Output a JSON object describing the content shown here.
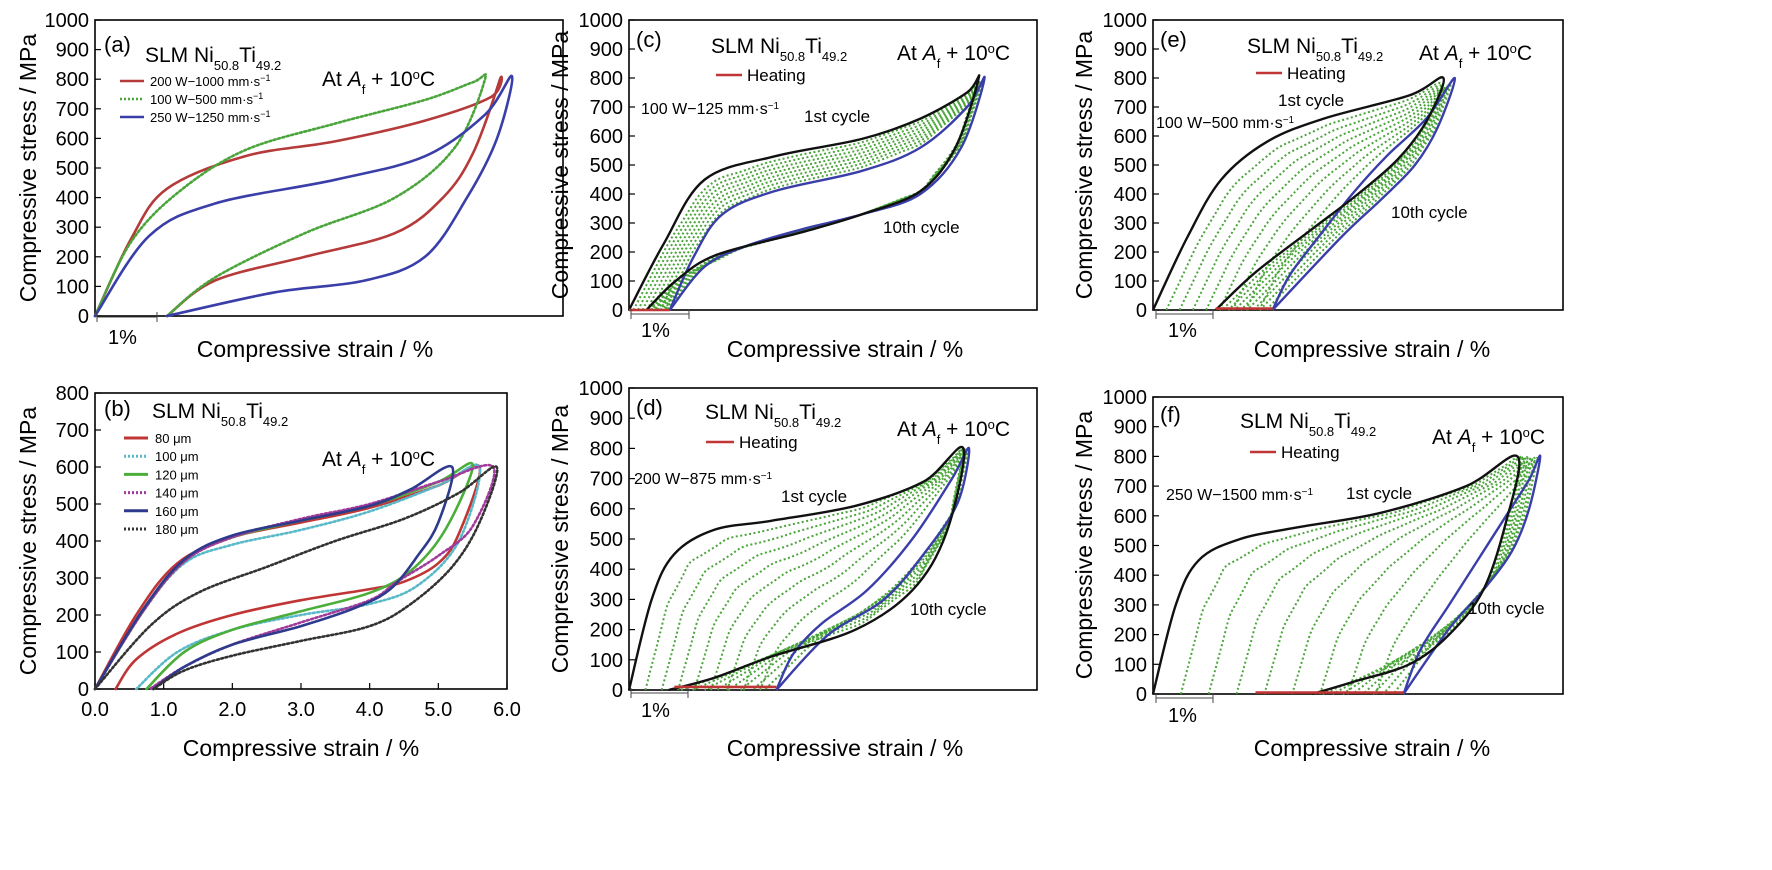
{
  "figure": {
    "type": "composite",
    "panels_count": 6
  },
  "chart_data": [
    {
      "panel": "(a)",
      "type": "line",
      "title_main": "SLM Ni",
      "title_sub1": "50.8",
      "title_mid": "Ti",
      "title_sub2": "49.2",
      "condition_prefix": "At ",
      "condition_A": "A",
      "condition_f": "f",
      "condition_rest": " + 10",
      "condition_o": "o",
      "condition_C": "C",
      "ylabel": "Compressive stress / MPa",
      "xlabel": "Compressive strain / %",
      "ylim": [
        0,
        1000
      ],
      "yticks": [
        "0",
        "100",
        "200",
        "300",
        "400",
        "500",
        "600",
        "700",
        "800",
        "900",
        "1000"
      ],
      "scale_bar_label": "1%",
      "series": [
        {
          "name": "200 W−1000 mm·s",
          "name_sup": "−1",
          "color": "#b53a3a",
          "style": "solid",
          "x": [
            0,
            0.6,
            1.2,
            2.5,
            4.0,
            5.5,
            6.6,
            6.75,
            6.3,
            5.8,
            5.0,
            3.5,
            2.0,
            1.2
          ],
          "y": [
            0,
            260,
            430,
            540,
            590,
            660,
            740,
            800,
            550,
            400,
            280,
            200,
            120,
            0
          ]
        },
        {
          "name": "100 W−500 mm·s",
          "name_sup": "−1",
          "color": "#4aa53a",
          "style": "dotted",
          "x": [
            0,
            0.6,
            1.4,
            2.5,
            4.0,
            5.5,
            6.3,
            6.5,
            6.0,
            5.0,
            3.5,
            2.0,
            1.2
          ],
          "y": [
            0,
            250,
            420,
            560,
            650,
            730,
            790,
            800,
            570,
            400,
            280,
            130,
            0
          ]
        },
        {
          "name": "250 W−1250 mm·s",
          "name_sup": "−1",
          "color": "#3a3ea8",
          "style": "solid",
          "x": [
            0,
            0.9,
            2.0,
            4.0,
            5.5,
            6.5,
            6.95,
            6.7,
            6.2,
            5.5,
            4.5,
            3.0,
            1.2
          ],
          "y": [
            0,
            270,
            380,
            460,
            540,
            680,
            810,
            600,
            400,
            200,
            120,
            80,
            0
          ]
        }
      ]
    },
    {
      "panel": "(b)",
      "type": "line",
      "title_main": "SLM Ni",
      "title_sub1": "50.8",
      "title_mid": "Ti",
      "title_sub2": "49.2",
      "condition_prefix": "At ",
      "condition_A": "A",
      "condition_f": "f",
      "condition_rest": " + 10",
      "condition_o": "o",
      "condition_C": "C",
      "ylabel": "Compressive stress / MPa",
      "xlabel": "Compressive strain / %",
      "ylim": [
        0,
        800
      ],
      "xlim": [
        0,
        6.0
      ],
      "yticks": [
        "0",
        "100",
        "200",
        "300",
        "400",
        "500",
        "600",
        "700",
        "800"
      ],
      "xticks": [
        "0.0",
        "1.0",
        "2.0",
        "3.0",
        "4.0",
        "5.0",
        "6.0"
      ],
      "series": [
        {
          "name": "80 μm",
          "color": "#c03535",
          "style": "solid",
          "x": [
            0,
            0.6,
            1.2,
            2.0,
            3.0,
            4.0,
            5.0,
            5.6,
            5.3,
            5.0,
            4.5,
            4.0,
            3.0,
            2.0,
            1.2,
            0.6,
            0.3
          ],
          "y": [
            0,
            200,
            340,
            410,
            450,
            490,
            550,
            600,
            420,
            340,
            290,
            270,
            240,
            200,
            150,
            80,
            0
          ]
        },
        {
          "name": "100 μm",
          "color": "#5ab9c8",
          "style": "dotted",
          "x": [
            0,
            0.7,
            1.3,
            2.0,
            3.0,
            4.0,
            5.0,
            5.6,
            5.3,
            4.7,
            4.0,
            3.0,
            2.0,
            1.2,
            0.6
          ],
          "y": [
            0,
            210,
            340,
            390,
            430,
            480,
            550,
            600,
            400,
            280,
            230,
            200,
            160,
            100,
            0
          ]
        },
        {
          "name": "120 μm",
          "color": "#4cae3a",
          "style": "solid",
          "x": [
            0,
            0.7,
            1.3,
            2.0,
            3.0,
            4.0,
            5.0,
            5.5,
            5.1,
            4.6,
            4.0,
            3.0,
            2.0,
            1.3,
            0.75
          ],
          "y": [
            0,
            210,
            345,
            410,
            455,
            495,
            560,
            605,
            430,
            320,
            260,
            210,
            160,
            100,
            0
          ]
        },
        {
          "name": "140 μm",
          "color": "#a23a9c",
          "style": "dotted",
          "x": [
            0,
            0.7,
            1.3,
            2.0,
            3.0,
            4.0,
            5.0,
            5.8,
            5.5,
            5.0,
            4.4,
            4.0,
            3.0,
            2.0,
            1.3,
            0.8
          ],
          "y": [
            0,
            210,
            345,
            410,
            460,
            500,
            560,
            600,
            440,
            360,
            290,
            240,
            180,
            120,
            60,
            0
          ]
        },
        {
          "name": "160 μm",
          "color": "#2e3a8c",
          "style": "solid",
          "x": [
            0,
            0.7,
            1.3,
            2.0,
            3.0,
            4.0,
            4.6,
            5.2,
            5.0,
            4.7,
            4.3,
            3.8,
            3.0,
            2.0,
            1.3,
            0.85
          ],
          "y": [
            0,
            215,
            350,
            415,
            455,
            495,
            540,
            600,
            450,
            360,
            270,
            220,
            170,
            120,
            60,
            0
          ]
        },
        {
          "name": "180 μm",
          "color": "#333333",
          "style": "dotted",
          "x": [
            0,
            0.8,
            1.5,
            2.5,
            3.5,
            4.5,
            5.3,
            5.85,
            5.6,
            5.2,
            4.6,
            4.0,
            3.0,
            2.0,
            1.3,
            0.85
          ],
          "y": [
            0,
            170,
            260,
            330,
            400,
            460,
            530,
            600,
            450,
            330,
            230,
            170,
            130,
            90,
            50,
            0
          ]
        }
      ]
    },
    {
      "panel": "(c)",
      "type": "line",
      "title_main": "SLM Ni",
      "title_sub1": "50.8",
      "title_mid": "Ti",
      "title_sub2": "49.2",
      "condition_prefix": "At ",
      "condition_A": "A",
      "condition_f": "f",
      "condition_rest": " + 10",
      "condition_o": "o",
      "condition_C": "C",
      "legend_heating": "Heating",
      "process": "100 W−125 mm·s",
      "process_sup": "−1",
      "label_first": "1st cycle",
      "label_tenth": "10th cycle",
      "ylabel": "Compressive stress / MPa",
      "xlabel": "Compressive strain  / %",
      "ylim": [
        0,
        1000
      ],
      "yticks": [
        "0",
        "100",
        "200",
        "300",
        "400",
        "500",
        "600",
        "700",
        "800",
        "900",
        "1000"
      ],
      "scale_bar_label": "1%",
      "cycle_first": {
        "x": [
          0,
          0.6,
          1.3,
          2.5,
          4.0,
          5.0,
          5.8,
          6.0,
          5.6,
          5.0,
          4.0,
          3.0,
          1.5,
          0.8,
          0.3
        ],
        "y": [
          0,
          230,
          450,
          530,
          590,
          660,
          750,
          800,
          560,
          410,
          330,
          270,
          190,
          100,
          0
        ]
      },
      "cycle_last": {
        "x": [
          0.7,
          1.1,
          1.6,
          2.5,
          4.0,
          5.0,
          5.8,
          6.1,
          5.7,
          5.0,
          4.0,
          3.0,
          2.0,
          1.3,
          0.7
        ],
        "y": [
          0,
          180,
          330,
          410,
          480,
          560,
          700,
          800,
          560,
          400,
          330,
          280,
          220,
          150,
          0
        ]
      },
      "heating_segment": {
        "x": [
          0,
          0.7
        ],
        "y": [
          0,
          0
        ]
      },
      "middle_cycles": 8
    },
    {
      "panel": "(d)",
      "type": "line",
      "title_main": "SLM Ni",
      "title_sub1": "50.8",
      "title_mid": "Ti",
      "title_sub2": "49.2",
      "condition_prefix": "At ",
      "condition_A": "A",
      "condition_f": "f",
      "condition_rest": " + 10",
      "condition_o": "o",
      "condition_C": "C",
      "legend_heating": "Heating",
      "process": "200 W−875 mm·s",
      "process_sup": "−1",
      "label_first": "1st cycle",
      "label_tenth": "10th cycle",
      "ylabel": "Compressive stress / MPa",
      "xlabel": "Compressive strain  / %",
      "ylim": [
        0,
        1000
      ],
      "yticks": [
        "0",
        "100",
        "200",
        "300",
        "400",
        "500",
        "600",
        "700",
        "800",
        "900",
        "1000"
      ],
      "scale_bar_label": "1%",
      "cycle_first": {
        "x": [
          0,
          0.4,
          0.8,
          1.5,
          2.5,
          4.0,
          5.2,
          5.9,
          5.6,
          5.0,
          4.0,
          2.5,
          1.5,
          0.7
        ],
        "y": [
          0,
          300,
          450,
          530,
          560,
          610,
          690,
          800,
          520,
          330,
          200,
          110,
          40,
          0
        ]
      },
      "cycle_last": {
        "x": [
          2.6,
          2.9,
          3.4,
          4.2,
          5.0,
          5.7,
          6.0,
          5.8,
          5.2,
          4.5,
          3.5,
          2.6
        ],
        "y": [
          0,
          120,
          220,
          330,
          500,
          700,
          800,
          620,
          450,
          300,
          180,
          0
        ]
      },
      "heating_segment": {
        "x": [
          0.8,
          2.6
        ],
        "y": [
          10,
          10
        ]
      },
      "middle_cycles": 8
    },
    {
      "panel": "(e)",
      "type": "line",
      "title_main": "SLM Ni",
      "title_sub1": "50.8",
      "title_mid": "Ti",
      "title_sub2": "49.2",
      "condition_prefix": "At ",
      "condition_A": "A",
      "condition_f": "f",
      "condition_rest": " + 10",
      "condition_o": "o",
      "condition_C": "C",
      "legend_heating": "Heating",
      "process": "100 W−500 mm·s",
      "process_sup": "−1",
      "label_first": "1st cycle",
      "label_tenth": "10th cycle",
      "ylabel": "Compressive stress / MPa",
      "xlabel": "Compressive strain  / %",
      "ylim": [
        0,
        1000
      ],
      "yticks": [
        "0",
        "100",
        "200",
        "300",
        "400",
        "500",
        "600",
        "700",
        "800",
        "900",
        "1000"
      ],
      "scale_bar_label": "1%",
      "cycle_first": {
        "x": [
          0,
          0.6,
          1.2,
          2.0,
          3.0,
          4.5,
          5.1,
          4.8,
          4.3,
          3.6,
          2.8,
          1.8,
          1.1
        ],
        "y": [
          0,
          250,
          450,
          580,
          660,
          740,
          800,
          650,
          520,
          400,
          280,
          130,
          0
        ]
      },
      "cycle_last": {
        "x": [
          2.1,
          2.4,
          2.9,
          3.5,
          4.1,
          4.8,
          5.3,
          5.0,
          4.6,
          4.0,
          3.3,
          2.1
        ],
        "y": [
          0,
          120,
          250,
          400,
          530,
          660,
          800,
          630,
          500,
          380,
          250,
          0
        ]
      },
      "heating_segment": {
        "x": [
          1.1,
          2.1
        ],
        "y": [
          5,
          5
        ]
      },
      "middle_cycles": 8
    },
    {
      "panel": "(f)",
      "type": "line",
      "title_main": "SLM Ni",
      "title_sub1": "50.8",
      "title_mid": "Ti",
      "title_sub2": "49.2",
      "condition_prefix": "At ",
      "condition_A": "A",
      "condition_f": "f",
      "condition_rest": " + 10",
      "condition_o": "o",
      "condition_C": "C",
      "legend_heating": "Heating",
      "process": "250 W−1500 mm·s",
      "process_sup": "−1",
      "label_first": "1st cycle",
      "label_tenth": "10th cycle",
      "ylabel": "Compressive stress / MPa",
      "xlabel": "Compressive strain  / %",
      "ylim": [
        0,
        1000
      ],
      "yticks": [
        "0",
        "100",
        "200",
        "300",
        "400",
        "500",
        "600",
        "700",
        "800",
        "900",
        "1000"
      ],
      "scale_bar_label": "1%",
      "cycle_first": {
        "x": [
          0,
          0.4,
          0.8,
          1.5,
          2.5,
          4.0,
          5.5,
          6.4,
          6.2,
          5.8,
          5.2,
          4.5,
          3.5,
          2.8
        ],
        "y": [
          0,
          300,
          450,
          520,
          560,
          610,
          700,
          800,
          580,
          350,
          200,
          100,
          40,
          0
        ]
      },
      "cycle_last": {
        "x": [
          4.4,
          4.7,
          5.2,
          5.7,
          6.2,
          6.6,
          6.8,
          6.6,
          6.3,
          5.8,
          5.2,
          4.4
        ],
        "y": [
          0,
          150,
          300,
          450,
          600,
          720,
          800,
          620,
          480,
          350,
          220,
          0
        ]
      },
      "heating_segment": {
        "x": [
          1.8,
          4.4
        ],
        "y": [
          5,
          5
        ]
      },
      "middle_cycles": 8
    }
  ]
}
